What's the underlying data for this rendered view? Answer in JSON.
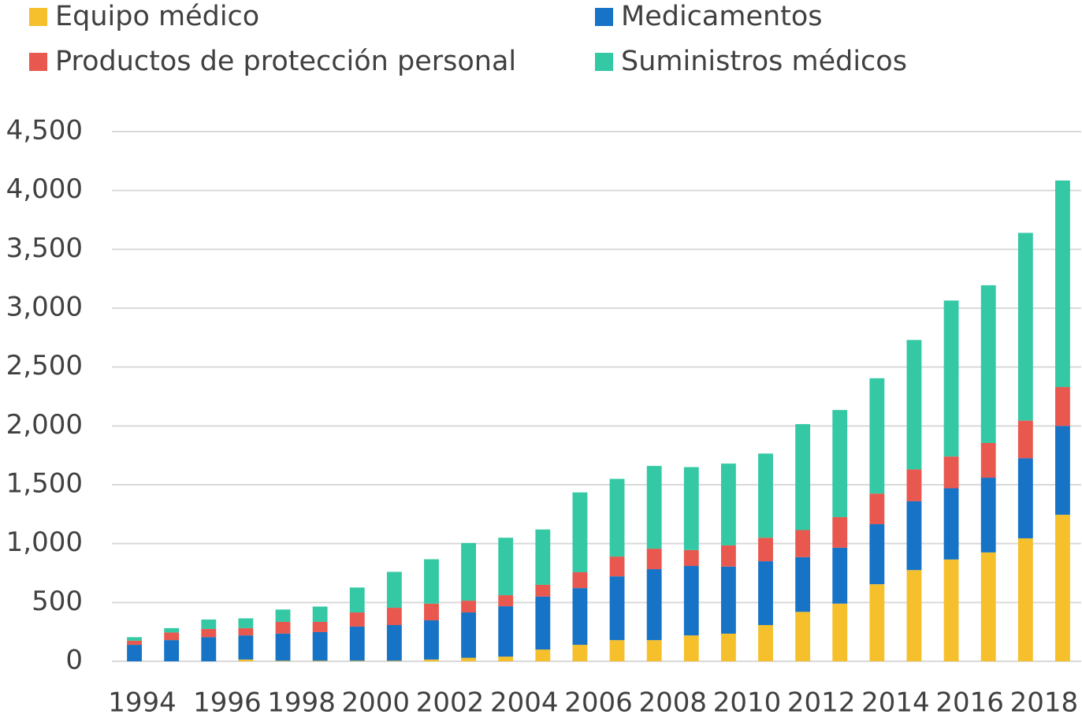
{
  "chart_data": {
    "type": "bar",
    "stacked": true,
    "categories": [
      "1994",
      null,
      "1996",
      null,
      "1998",
      null,
      "2000",
      null,
      "2002",
      null,
      "2004",
      null,
      "2006",
      null,
      "2008",
      null,
      "2010",
      null,
      "2012",
      null,
      "2014",
      null,
      "2016",
      null,
      "2018",
      null
    ],
    "series": [
      {
        "name": "Equipo médico",
        "color": "#f5c02c",
        "values": [
          0,
          0,
          0,
          15,
          5,
          5,
          5,
          5,
          15,
          30,
          40,
          100,
          140,
          180,
          180,
          220,
          235,
          308,
          420,
          490,
          655,
          775,
          865,
          925,
          1045,
          1245
        ]
      },
      {
        "name": "Medicamentos",
        "color": "#1673c6",
        "values": [
          140,
          180,
          205,
          205,
          230,
          243,
          290,
          303,
          333,
          385,
          428,
          450,
          482,
          542,
          603,
          590,
          570,
          542,
          465,
          475,
          510,
          585,
          605,
          635,
          680,
          755
        ]
      },
      {
        "name": "Productos de protección personal",
        "color": "#e8584f",
        "values": [
          35,
          65,
          70,
          62,
          100,
          87,
          120,
          147,
          142,
          100,
          94,
          100,
          135,
          168,
          174,
          135,
          180,
          200,
          230,
          260,
          260,
          270,
          270,
          295,
          320,
          330
        ]
      },
      {
        "name": "Suministros médicos",
        "color": "#34c9a4",
        "values": [
          30,
          37,
          80,
          83,
          105,
          130,
          212,
          305,
          377,
          490,
          488,
          470,
          678,
          660,
          703,
          705,
          695,
          715,
          900,
          910,
          980,
          1100,
          1325,
          1340,
          1595,
          1755
        ]
      }
    ],
    "ylim": [
      0,
      4500
    ],
    "yticks": [
      0,
      500,
      {
        "value": 1000,
        "label": "1,000"
      },
      {
        "value": 1500,
        "label": "1,500"
      },
      {
        "value": 2000,
        "label": "2,000"
      },
      {
        "value": 2500,
        "label": "2,500"
      },
      {
        "value": 3000,
        "label": "3,000"
      },
      {
        "value": 3500,
        "label": "3,500"
      },
      {
        "value": 4000,
        "label": "4,000"
      },
      {
        "value": 4500,
        "label": "4,500"
      }
    ],
    "grid": true,
    "legend": "top"
  }
}
